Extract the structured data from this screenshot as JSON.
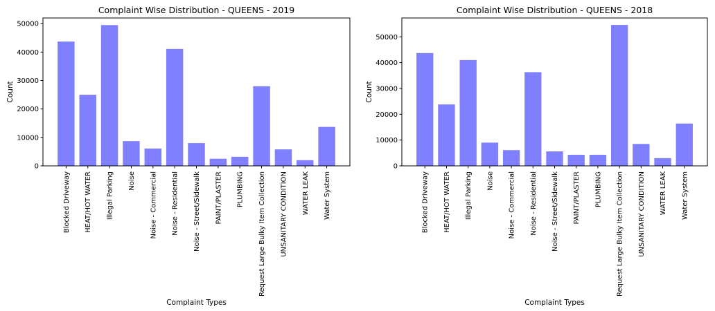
{
  "chart_data": [
    {
      "type": "bar",
      "title": "Complaint Wise Distribution - QUEENS - 2019",
      "xlabel": "Complaint Types",
      "ylabel": "Count",
      "ylim": [
        0,
        52000
      ],
      "yticks": [
        0,
        10000,
        20000,
        30000,
        40000,
        50000
      ],
      "color": "#8080ff",
      "grid": false,
      "categories": [
        "Blocked Driveway",
        "HEAT/HOT WATER",
        "Illegal Parking",
        "Noise",
        "Noise - Commercial",
        "Noise - Residential",
        "Noise - Street/Sidewalk",
        "PAINT/PLASTER",
        "PLUMBING",
        "Request Large Bulky Item Collection",
        "UNSANITARY CONDITION",
        "WATER LEAK",
        "Water System"
      ],
      "values": [
        43700,
        25000,
        49500,
        8700,
        6100,
        41100,
        8000,
        2500,
        3200,
        28000,
        5800,
        2000,
        13700
      ]
    },
    {
      "type": "bar",
      "title": "Complaint Wise Distribution - QUEENS - 2018",
      "xlabel": "Complaint Types",
      "ylabel": "Count",
      "ylim": [
        0,
        57300
      ],
      "yticks": [
        0,
        10000,
        20000,
        30000,
        40000,
        50000
      ],
      "color": "#8080ff",
      "grid": false,
      "categories": [
        "Blocked Driveway",
        "HEAT/HOT WATER",
        "Illegal Parking",
        "Noise",
        "Noise - Commercial",
        "Noise - Residential",
        "Noise - Street/Sidewalk",
        "PAINT/PLASTER",
        "PLUMBING",
        "Request Large Bulky Item Collection",
        "UNSANITARY CONDITION",
        "WATER LEAK",
        "Water System"
      ],
      "values": [
        43700,
        23800,
        41000,
        9000,
        6100,
        36300,
        5600,
        4300,
        4300,
        54600,
        8500,
        3000,
        16400
      ]
    }
  ]
}
